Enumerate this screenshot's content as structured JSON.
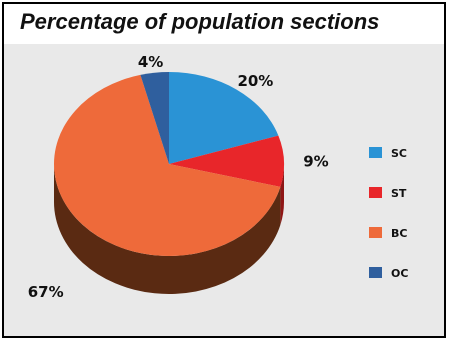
{
  "chart_data": {
    "type": "pie",
    "title": "Percentage of population sections",
    "categories": [
      "SC",
      "ST",
      "BC",
      "OC"
    ],
    "values": [
      20,
      9,
      67,
      4
    ],
    "labels": [
      "20%",
      "9%",
      "67%",
      "4%"
    ],
    "colors": [
      "#2a93d5",
      "#e8262a",
      "#ee6a3a",
      "#2f5f9e"
    ],
    "side_colors": [
      "#1d5f8c",
      "#8f1616",
      "#5a2a12",
      "#1d3a63"
    ],
    "legend_position": "right"
  }
}
